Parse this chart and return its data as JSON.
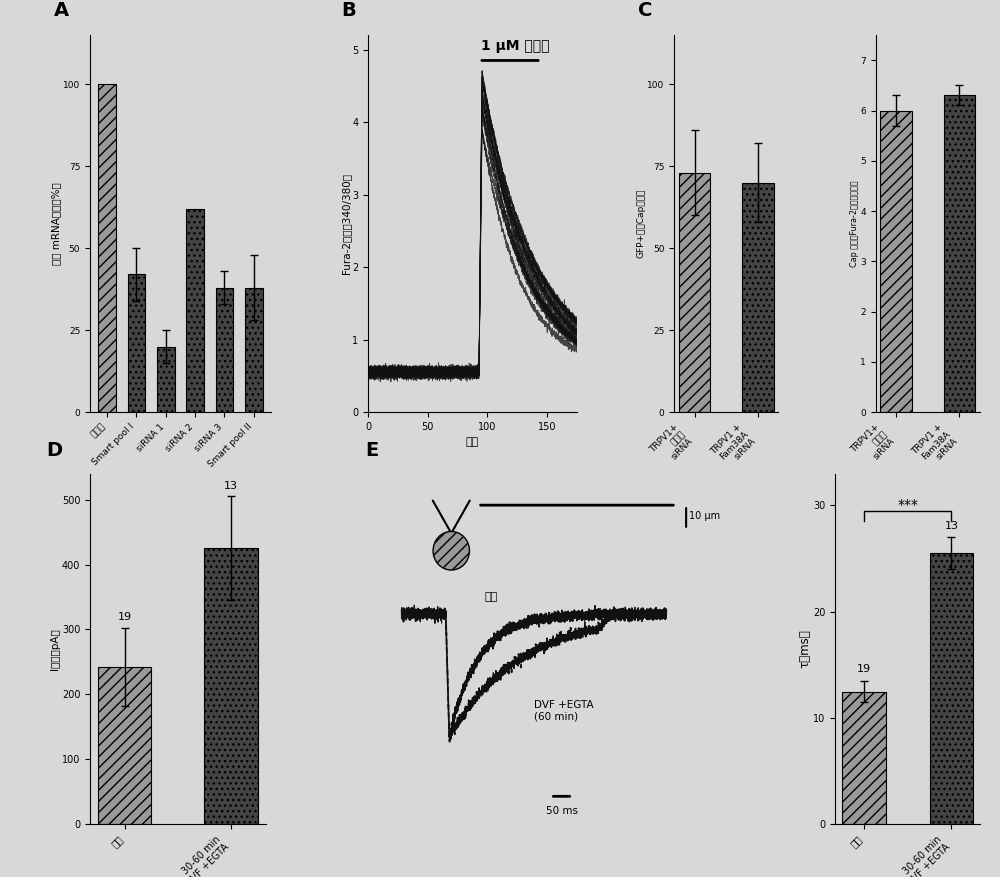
{
  "panel_A": {
    "categories": [
      "乱序的",
      "Smart pool I",
      "siRNA 1",
      "siRNA 2",
      "siRNA 3",
      "Smart pool II"
    ],
    "values": [
      100,
      42,
      20,
      62,
      38,
      38
    ],
    "errors": [
      0,
      8,
      5,
      0,
      5,
      10
    ],
    "ylabel": "相对 mRNA表达（%）",
    "yticks": [
      0,
      25,
      50,
      75,
      100
    ],
    "colors": [
      "hatch_light",
      "hatch_dark",
      "hatch_dark",
      "hatch_dark",
      "hatch_dark",
      "hatch_dark"
    ],
    "label": "A"
  },
  "panel_B": {
    "xlabel": "时间",
    "ylabel": "Fura-2比率（340/380）",
    "annotation": "1 μM 轣椒素",
    "yticks": [
      0,
      1,
      2,
      3,
      4,
      5
    ],
    "xticks": [
      0,
      50,
      100,
      150
    ],
    "label": "B",
    "baseline": 0.55,
    "peak": 4.5,
    "peak_t": 93,
    "n_traces": 15
  },
  "panel_C_left": {
    "categories": [
      "TRPV1+\n乱序的\nsiRNA",
      "TRPV1 +\nFam38A\nsiRNA"
    ],
    "values": [
      73,
      70
    ],
    "errors": [
      13,
      12
    ],
    "ylabel": "GFP+中的Cap响应者",
    "yticks": [
      0,
      25,
      50,
      75,
      100
    ],
    "colors": [
      "hatch_light",
      "hatch_dark"
    ],
    "label": "C"
  },
  "panel_C_right": {
    "categories": [
      "TRPV1+\n乱序的\nsiRNA",
      "TRPV1 +\nFam38A\nsiRNA"
    ],
    "values": [
      6.0,
      6.3
    ],
    "errors": [
      0.3,
      0.2
    ],
    "ylabel": "Cap 响应（Fura-2比率倍数变）",
    "yticks": [
      0,
      1,
      2,
      3,
      4,
      5,
      6,
      7
    ],
    "colors": [
      "hatch_light",
      "hatch_dark"
    ]
  },
  "panel_D": {
    "categories": [
      "对照",
      "30-60 min\nDVF +EGTA"
    ],
    "values": [
      242,
      425
    ],
    "errors": [
      60,
      80
    ],
    "ns": [
      "19",
      "13"
    ],
    "ylabel": "I最大（pA）",
    "yticks": [
      0,
      100,
      200,
      300,
      400,
      500
    ],
    "colors": [
      "hatch_light",
      "hatch_dark"
    ],
    "label": "D"
  },
  "panel_E_right": {
    "categories": [
      "对照",
      "30-60 min\nDVF +EGTA"
    ],
    "values": [
      12.5,
      25.5
    ],
    "errors": [
      1.0,
      1.5
    ],
    "ns": [
      "19",
      "13"
    ],
    "ylabel": "τ（ms）",
    "yticks": [
      0,
      10,
      20,
      30
    ],
    "colors": [
      "hatch_light",
      "hatch_dark"
    ],
    "significance": "***",
    "label": "E"
  },
  "background_color": "#d8d8d8",
  "light_fc": "#999999",
  "dark_fc": "#444444"
}
